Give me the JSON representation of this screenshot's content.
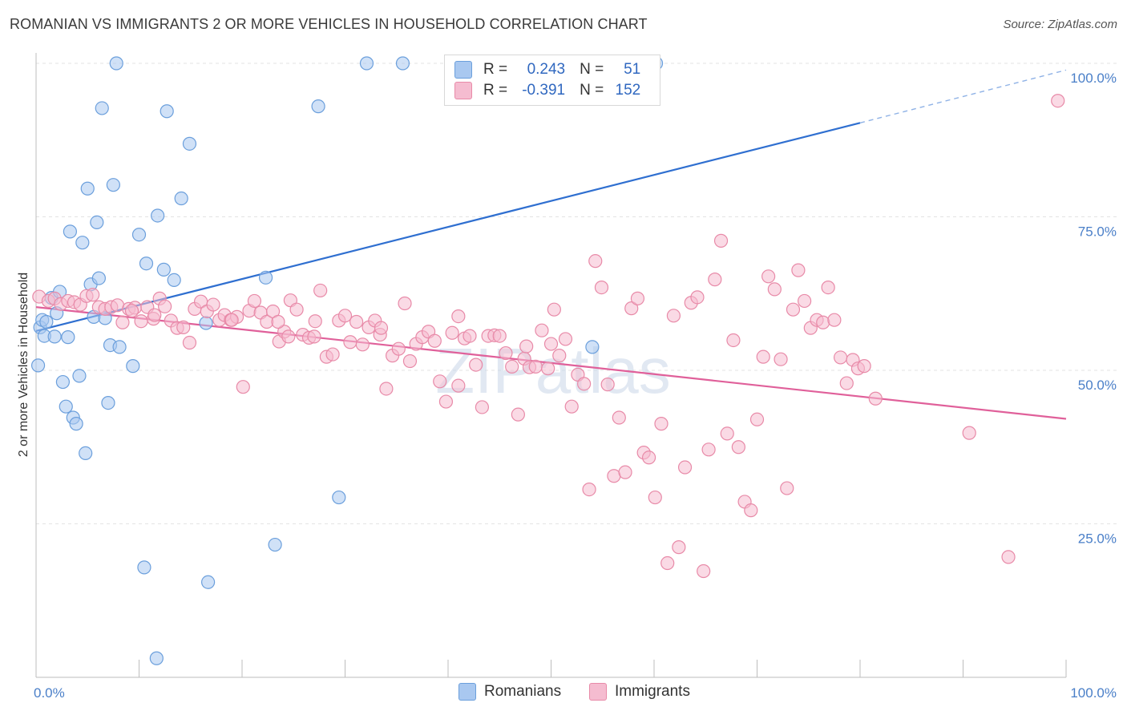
{
  "title": "ROMANIAN VS IMMIGRANTS 2 OR MORE VEHICLES IN HOUSEHOLD CORRELATION CHART",
  "source": "Source: ZipAtlas.com",
  "watermark": "ZIPatlas",
  "legend_stats": [
    {
      "r_label": "R =",
      "r": "0.243",
      "n_label": "N =",
      "n": "51",
      "color": "#a9c8f0",
      "border": "#6b9fdc"
    },
    {
      "r_label": "R =",
      "r": "-0.391",
      "n_label": "N =",
      "n": "152",
      "color": "#f5bcd0",
      "border": "#e88aa8"
    }
  ],
  "chart_data": {
    "type": "scatter",
    "title": "ROMANIAN VS IMMIGRANTS 2 OR MORE VEHICLES IN HOUSEHOLD CORRELATION CHART",
    "xlabel": "",
    "ylabel": "2 or more Vehicles in Household",
    "xlim": [
      0,
      100
    ],
    "ylim": [
      0,
      100
    ],
    "x_tick_labels": [
      "0.0%",
      "100.0%"
    ],
    "y_tick_labels": [
      "25.0%",
      "50.0%",
      "75.0%",
      "100.0%"
    ],
    "y_ticks": [
      25,
      50,
      75,
      100
    ],
    "grid": true,
    "legend": "bottom-center",
    "series": [
      {
        "name": "Romanians",
        "color": "#6b9fdc",
        "fill": "#a9c8f0",
        "trend": {
          "x0": 0,
          "y0": 56.4,
          "x1": 80,
          "y1": 90.3,
          "dash_to_x": 100,
          "dash_to_y": 98.9
        },
        "points": [
          [
            0.2,
            50.8
          ],
          [
            0.4,
            57.0
          ],
          [
            0.6,
            58.2
          ],
          [
            0.8,
            55.6
          ],
          [
            1.0,
            57.9
          ],
          [
            1.5,
            61.8
          ],
          [
            1.8,
            55.5
          ],
          [
            2.0,
            59.3
          ],
          [
            2.3,
            62.8
          ],
          [
            2.6,
            48.1
          ],
          [
            2.9,
            44.1
          ],
          [
            3.1,
            55.4
          ],
          [
            3.3,
            72.6
          ],
          [
            3.6,
            42.3
          ],
          [
            3.9,
            41.3
          ],
          [
            4.2,
            49.1
          ],
          [
            4.5,
            70.8
          ],
          [
            4.8,
            36.5
          ],
          [
            5.0,
            79.6
          ],
          [
            5.3,
            64.0
          ],
          [
            5.6,
            58.7
          ],
          [
            5.9,
            74.1
          ],
          [
            6.1,
            65.0
          ],
          [
            6.4,
            92.7
          ],
          [
            6.7,
            58.5
          ],
          [
            7.0,
            44.7
          ],
          [
            7.2,
            54.1
          ],
          [
            7.5,
            80.2
          ],
          [
            7.8,
            100.0
          ],
          [
            8.1,
            53.8
          ],
          [
            9.4,
            50.7
          ],
          [
            10.0,
            72.1
          ],
          [
            10.5,
            17.9
          ],
          [
            10.7,
            67.4
          ],
          [
            11.7,
            3.1
          ],
          [
            11.8,
            75.2
          ],
          [
            12.4,
            66.4
          ],
          [
            12.7,
            92.2
          ],
          [
            13.4,
            64.7
          ],
          [
            14.1,
            78.0
          ],
          [
            14.9,
            86.9
          ],
          [
            16.5,
            57.7
          ],
          [
            16.7,
            15.5
          ],
          [
            22.3,
            65.1
          ],
          [
            23.2,
            21.6
          ],
          [
            27.4,
            93.0
          ],
          [
            29.4,
            29.3
          ],
          [
            32.1,
            100.0
          ],
          [
            35.6,
            100.0
          ],
          [
            54.0,
            53.8
          ],
          [
            60.2,
            100.0
          ]
        ]
      },
      {
        "name": "Immigrants",
        "color": "#e88aa8",
        "fill": "#f5bcd0",
        "trend": {
          "x0": 0,
          "y0": 60.3,
          "x1": 100,
          "y1": 42.1
        },
        "points": [
          [
            0.3,
            62.0
          ],
          [
            1.2,
            61.3
          ],
          [
            1.8,
            61.7
          ],
          [
            2.4,
            60.8
          ],
          [
            3.1,
            61.3
          ],
          [
            3.7,
            61.1
          ],
          [
            4.3,
            60.7
          ],
          [
            4.9,
            62.1
          ],
          [
            5.5,
            62.3
          ],
          [
            6.1,
            60.3
          ],
          [
            6.7,
            60.0
          ],
          [
            7.3,
            60.3
          ],
          [
            7.9,
            60.6
          ],
          [
            8.4,
            57.8
          ],
          [
            9.0,
            60.0
          ],
          [
            9.6,
            60.2
          ],
          [
            10.2,
            58.0
          ],
          [
            10.8,
            60.3
          ],
          [
            11.4,
            58.4
          ],
          [
            12.0,
            61.7
          ],
          [
            12.5,
            60.4
          ],
          [
            13.1,
            58.1
          ],
          [
            13.7,
            56.9
          ],
          [
            14.3,
            57.0
          ],
          [
            14.9,
            54.5
          ],
          [
            15.4,
            60.0
          ],
          [
            16.0,
            61.2
          ],
          [
            16.6,
            59.6
          ],
          [
            17.2,
            60.7
          ],
          [
            17.8,
            58.2
          ],
          [
            18.3,
            59.0
          ],
          [
            18.9,
            58.2
          ],
          [
            19.5,
            58.7
          ],
          [
            20.1,
            47.3
          ],
          [
            20.7,
            59.7
          ],
          [
            21.2,
            61.3
          ],
          [
            21.8,
            59.4
          ],
          [
            22.4,
            57.9
          ],
          [
            23.0,
            59.6
          ],
          [
            23.6,
            54.7
          ],
          [
            24.1,
            56.3
          ],
          [
            24.7,
            61.4
          ],
          [
            25.3,
            59.9
          ],
          [
            25.9,
            55.8
          ],
          [
            26.5,
            55.3
          ],
          [
            27.1,
            58.0
          ],
          [
            27.6,
            63.0
          ],
          [
            28.2,
            52.2
          ],
          [
            28.8,
            52.6
          ],
          [
            29.4,
            58.1
          ],
          [
            30.0,
            58.9
          ],
          [
            30.5,
            54.6
          ],
          [
            31.1,
            57.9
          ],
          [
            31.7,
            54.2
          ],
          [
            32.3,
            57.0
          ],
          [
            32.9,
            58.1
          ],
          [
            33.4,
            55.8
          ],
          [
            34.0,
            47.0
          ],
          [
            34.6,
            52.4
          ],
          [
            35.2,
            53.5
          ],
          [
            35.8,
            60.9
          ],
          [
            36.3,
            51.5
          ],
          [
            36.9,
            54.3
          ],
          [
            37.5,
            55.4
          ],
          [
            38.1,
            56.3
          ],
          [
            38.7,
            54.8
          ],
          [
            39.2,
            48.2
          ],
          [
            39.8,
            44.9
          ],
          [
            40.4,
            56.1
          ],
          [
            41.0,
            58.8
          ],
          [
            41.6,
            55.2
          ],
          [
            42.1,
            55.6
          ],
          [
            42.7,
            50.9
          ],
          [
            43.3,
            44.0
          ],
          [
            43.9,
            55.6
          ],
          [
            44.5,
            55.7
          ],
          [
            45.0,
            55.6
          ],
          [
            45.6,
            52.8
          ],
          [
            46.2,
            50.6
          ],
          [
            46.8,
            42.8
          ],
          [
            47.4,
            51.9
          ],
          [
            47.9,
            50.5
          ],
          [
            48.5,
            50.6
          ],
          [
            49.1,
            56.5
          ],
          [
            49.7,
            50.3
          ],
          [
            50.3,
            59.9
          ],
          [
            50.8,
            52.4
          ],
          [
            51.4,
            55.1
          ],
          [
            52.0,
            44.1
          ],
          [
            52.6,
            49.3
          ],
          [
            53.2,
            47.8
          ],
          [
            53.7,
            30.6
          ],
          [
            54.3,
            67.8
          ],
          [
            54.9,
            63.5
          ],
          [
            55.5,
            47.7
          ],
          [
            56.1,
            32.8
          ],
          [
            56.6,
            42.3
          ],
          [
            57.2,
            33.4
          ],
          [
            57.8,
            60.1
          ],
          [
            58.4,
            61.7
          ],
          [
            59.0,
            36.6
          ],
          [
            59.5,
            35.8
          ],
          [
            60.1,
            29.3
          ],
          [
            60.7,
            41.3
          ],
          [
            61.3,
            18.6
          ],
          [
            61.9,
            58.9
          ],
          [
            62.4,
            21.2
          ],
          [
            63.0,
            34.2
          ],
          [
            63.6,
            61.0
          ],
          [
            64.2,
            61.9
          ],
          [
            64.8,
            17.3
          ],
          [
            65.3,
            37.1
          ],
          [
            65.9,
            64.8
          ],
          [
            66.5,
            71.1
          ],
          [
            67.1,
            39.7
          ],
          [
            67.7,
            54.9
          ],
          [
            68.2,
            37.5
          ],
          [
            68.8,
            28.6
          ],
          [
            69.4,
            27.2
          ],
          [
            70.0,
            42.0
          ],
          [
            70.6,
            52.2
          ],
          [
            71.1,
            65.3
          ],
          [
            71.7,
            63.2
          ],
          [
            72.3,
            51.8
          ],
          [
            72.9,
            30.8
          ],
          [
            73.5,
            59.9
          ],
          [
            74.0,
            66.3
          ],
          [
            74.6,
            61.3
          ],
          [
            75.2,
            56.9
          ],
          [
            75.8,
            58.2
          ],
          [
            76.4,
            57.8
          ],
          [
            76.9,
            63.5
          ],
          [
            77.5,
            58.2
          ],
          [
            78.1,
            52.1
          ],
          [
            78.7,
            47.9
          ],
          [
            79.3,
            51.7
          ],
          [
            79.8,
            50.3
          ],
          [
            80.4,
            50.7
          ],
          [
            11.5,
            59.0
          ],
          [
            23.5,
            57.9
          ],
          [
            24.5,
            55.5
          ],
          [
            33.5,
            56.9
          ],
          [
            41.0,
            47.5
          ],
          [
            47.6,
            53.9
          ],
          [
            50.0,
            54.3
          ],
          [
            81.5,
            45.4
          ],
          [
            90.6,
            39.8
          ],
          [
            94.4,
            19.6
          ],
          [
            99.2,
            93.9
          ],
          [
            9.3,
            59.7
          ],
          [
            19.0,
            58.2
          ],
          [
            27.0,
            55.5
          ]
        ]
      }
    ]
  }
}
